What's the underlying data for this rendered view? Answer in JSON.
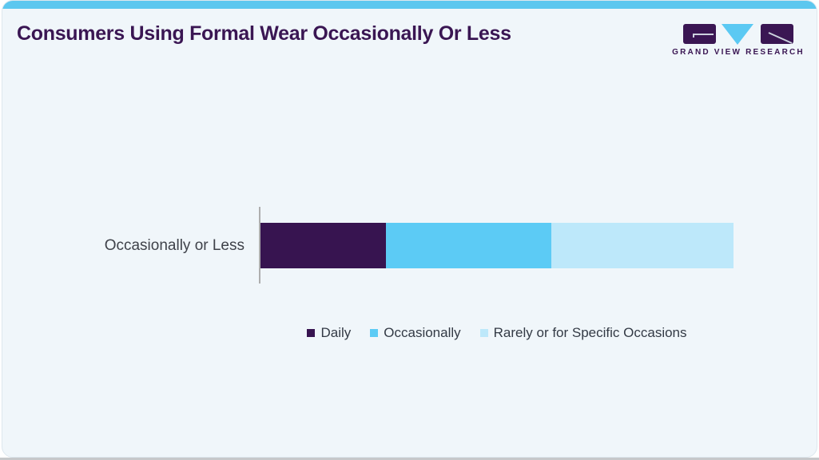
{
  "page": {
    "accent_color": "#5CC7EF",
    "card_background": "#F0F6FA",
    "card_border": "#DDE7EE"
  },
  "header": {
    "title": "Consumers Using Formal Wear Occasionally Or Less",
    "title_color": "#3A1653",
    "logo": {
      "text": "GRAND VIEW RESEARCH",
      "purple": "#3A1653",
      "cyan": "#5BC9F3"
    }
  },
  "chart_data": {
    "type": "bar",
    "orientation": "horizontal",
    "stacked": true,
    "title": "Consumers Using Formal Wear Occasionally Or Less",
    "categories": [
      "Occasionally or Less"
    ],
    "series": [
      {
        "name": "Daily",
        "values": [
          26.5
        ],
        "color": "#371450"
      },
      {
        "name": "Occasionally",
        "values": [
          35.0
        ],
        "color": "#5CCBF5"
      },
      {
        "name": "Rarely or for Specific Occasions",
        "values": [
          38.5
        ],
        "color": "#BDE8FA"
      }
    ],
    "xlabel": "",
    "ylabel": "",
    "xlim": [
      0,
      100
    ],
    "units": "percent of bar length (estimated; no data labels shown)",
    "grid": false,
    "legend_position": "bottom"
  }
}
